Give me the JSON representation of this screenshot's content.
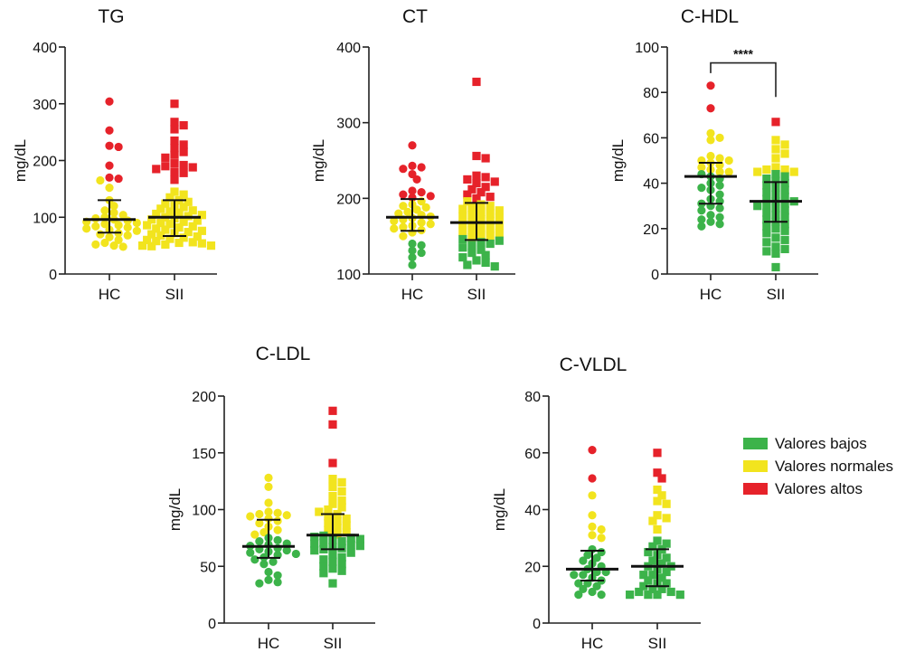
{
  "colors": {
    "bajo": "#3cb34a",
    "normal": "#f2e41e",
    "alto": "#e6222a",
    "axis": "#222222"
  },
  "legend": [
    {
      "key": "bajo",
      "label": "Valores bajos"
    },
    {
      "key": "normal",
      "label": "Valores normales"
    },
    {
      "key": "alto",
      "label": "Valores altos"
    }
  ],
  "chart_data": [
    {
      "type": "scatter",
      "title": "TG",
      "ylabel": "mg/dL",
      "ylim": [
        0,
        400
      ],
      "yticks": [
        0,
        100,
        200,
        300,
        400
      ],
      "categories": [
        "HC",
        "SII"
      ],
      "groups": [
        {
          "name": "HC",
          "marker": "circle",
          "mean": 96,
          "err_low": 73,
          "err_high": 130,
          "points": {
            "alto": [
              304,
              253,
              226,
              224,
              191,
              170,
              168
            ],
            "normal": [
              165,
              152,
              130,
              120,
              112,
              108,
              104,
              100,
              98,
              96,
              94,
              92,
              90,
              88,
              86,
              84,
              82,
              80,
              78,
              76,
              72,
              70,
              68,
              65,
              60,
              55,
              52,
              50,
              48
            ],
            "bajo": []
          }
        },
        {
          "name": "SII",
          "marker": "square",
          "mean": 100,
          "err_low": 67,
          "err_high": 130,
          "points": {
            "alto": [
              300,
              268,
              262,
              255,
              235,
              228,
              222,
              215,
              210,
              205,
              195,
              192,
              190,
              188,
              185,
              180,
              178,
              166
            ],
            "normal": [
              145,
              140,
              135,
              130,
              127,
              124,
              120,
              118,
              115,
              112,
              110,
              108,
              106,
              104,
              102,
              100,
              98,
              96,
              94,
              92,
              90,
              88,
              86,
              84,
              82,
              80,
              78,
              76,
              74,
              72,
              70,
              68,
              66,
              64,
              62,
              60,
              58,
              56,
              55,
              54,
              52,
              50,
              50,
              49
            ],
            "bajo": []
          }
        }
      ],
      "annotations": []
    },
    {
      "type": "scatter",
      "title": "CT",
      "ylabel": "mg/dL",
      "ylim": [
        100,
        400
      ],
      "yticks": [
        100,
        200,
        300,
        400
      ],
      "categories": [
        "HC",
        "SII"
      ],
      "groups": [
        {
          "name": "HC",
          "marker": "circle",
          "mean": 175,
          "err_low": 157,
          "err_high": 199,
          "points": {
            "alto": [
              270,
              243,
              241,
              239,
              232,
              225,
              210,
              208,
              205,
              203,
              201
            ],
            "normal": [
              196,
              192,
              190,
              188,
              185,
              182,
              180,
              178,
              176,
              174,
              172,
              170,
              168,
              166,
              164,
              162,
              160,
              158,
              155,
              150
            ],
            "bajo": [
              140,
              138,
              131,
              128,
              122,
              112
            ]
          }
        },
        {
          "name": "SII",
          "marker": "square",
          "mean": 168,
          "err_low": 145,
          "err_high": 194,
          "points": {
            "alto": [
              354,
              256,
              253,
              230,
              228,
              225,
              222,
              220,
              215,
              212,
              208,
              205,
              202,
              200
            ],
            "normal": [
              196,
              192,
              190,
              188,
              186,
              184,
              182,
              180,
              178,
              176,
              174,
              172,
              170,
              168,
              166,
              164,
              162,
              160,
              158,
              156,
              154,
              152,
              150,
              148
            ],
            "bajo": [
              146,
              144,
              142,
              140,
              138,
              135,
              132,
              128,
              125,
              122,
              118,
              115,
              112,
              110
            ]
          }
        }
      ],
      "annotations": []
    },
    {
      "type": "scatter",
      "title": "C-HDL",
      "ylabel": "mg/dL",
      "ylim": [
        0,
        100
      ],
      "yticks": [
        0,
        20,
        40,
        60,
        80,
        100
      ],
      "categories": [
        "HC",
        "SII"
      ],
      "groups": [
        {
          "name": "HC",
          "marker": "circle",
          "mean": 43,
          "err_low": 31,
          "err_high": 49,
          "points": {
            "alto": [
              83,
              73
            ],
            "normal": [
              62,
              60,
              59,
              52,
              51,
              50,
              50,
              49,
              48,
              47,
              46,
              45,
              45
            ],
            "bajo": [
              44,
              43,
              42,
              40,
              39,
              38,
              37,
              35,
              33,
              32,
              31,
              30,
              29,
              28,
              26,
              25,
              24,
              23,
              22,
              21
            ]
          }
        },
        {
          "name": "SII",
          "marker": "square",
          "mean": 32,
          "err_low": 23,
          "err_high": 40.5,
          "points": {
            "alto": [
              67
            ],
            "normal": [
              59,
              57,
              55,
              53,
              51,
              47,
              46,
              46,
              45,
              45
            ],
            "bajo": [
              44,
              43,
              42,
              41,
              40,
              39,
              38,
              37,
              36,
              35,
              34,
              33,
              32,
              32,
              31,
              30,
              30,
              29,
              28,
              27,
              26,
              25,
              24,
              23,
              22,
              21,
              20,
              19,
              18,
              16,
              15,
              14,
              12,
              11,
              10,
              9,
              3
            ]
          }
        }
      ],
      "annotations": [
        {
          "type": "significance-bracket",
          "between": [
            "HC",
            "SII"
          ],
          "label": "****"
        }
      ]
    },
    {
      "type": "scatter",
      "title": "C-LDL",
      "ylabel": "mg/dL",
      "ylim": [
        0,
        200
      ],
      "yticks": [
        0,
        50,
        100,
        150,
        200
      ],
      "categories": [
        "HC",
        "SII"
      ],
      "groups": [
        {
          "name": "HC",
          "marker": "circle",
          "mean": 67.5,
          "err_low": 57.5,
          "err_high": 91,
          "points": {
            "normal": [
              128,
              120,
              106,
              98,
              97,
              96,
              95,
              94,
              92,
              90,
              88,
              85,
              82,
              80,
              78
            ],
            "bajo": [
              75,
              73,
              72,
              70,
              69,
              68,
              66,
              65,
              64,
              63,
              62,
              61,
              60,
              58,
              56,
              54,
              52,
              45,
              42,
              38,
              36,
              35
            ],
            "alto": []
          }
        },
        {
          "name": "SII",
          "marker": "square",
          "mean": 77.5,
          "err_low": 65,
          "err_high": 96,
          "points": {
            "alto": [
              187,
              175,
              141
            ],
            "normal": [
              127,
              124,
              120,
              116,
              112,
              108,
              105,
              102,
              100,
              98,
              96,
              94,
              92,
              90,
              88,
              86,
              84,
              82,
              80,
              78
            ],
            "bajo": [
              77,
              76,
              75,
              74,
              73,
              72,
              71,
              70,
              69,
              68,
              67,
              66,
              65,
              64,
              62,
              60,
              58,
              56,
              54,
              52,
              50,
              48,
              46,
              44,
              35
            ]
          }
        }
      ],
      "annotations": []
    },
    {
      "type": "scatter",
      "title": "C-VLDL",
      "ylabel": "mg/dL",
      "ylim": [
        0,
        80
      ],
      "yticks": [
        0,
        20,
        40,
        60,
        80
      ],
      "categories": [
        "HC",
        "SII"
      ],
      "groups": [
        {
          "name": "HC",
          "marker": "circle",
          "mean": 19,
          "err_low": 15,
          "err_high": 25.5,
          "points": {
            "alto": [
              61,
              51
            ],
            "normal": [
              45,
              38,
              34,
              33,
              31,
              30
            ],
            "bajo": [
              26,
              25,
              24,
              23,
              22,
              21,
              20,
              19,
              18,
              18,
              17,
              17,
              16,
              15,
              14,
              14,
              13,
              12,
              11,
              10,
              10
            ]
          }
        },
        {
          "name": "SII",
          "marker": "square",
          "mean": 20,
          "err_low": 13,
          "err_high": 26,
          "points": {
            "alto": [
              60,
              53,
              51
            ],
            "normal": [
              47,
              45,
              43,
              42,
              38,
              37,
              36,
              33
            ],
            "bajo": [
              29,
              28,
              27,
              26,
              25,
              24,
              23,
              22,
              21,
              20,
              20,
              19,
              18,
              17,
              17,
              16,
              15,
              14,
              14,
              13,
              12,
              12,
              11,
              11,
              10,
              10,
              10,
              10
            ]
          }
        }
      ],
      "annotations": []
    }
  ]
}
